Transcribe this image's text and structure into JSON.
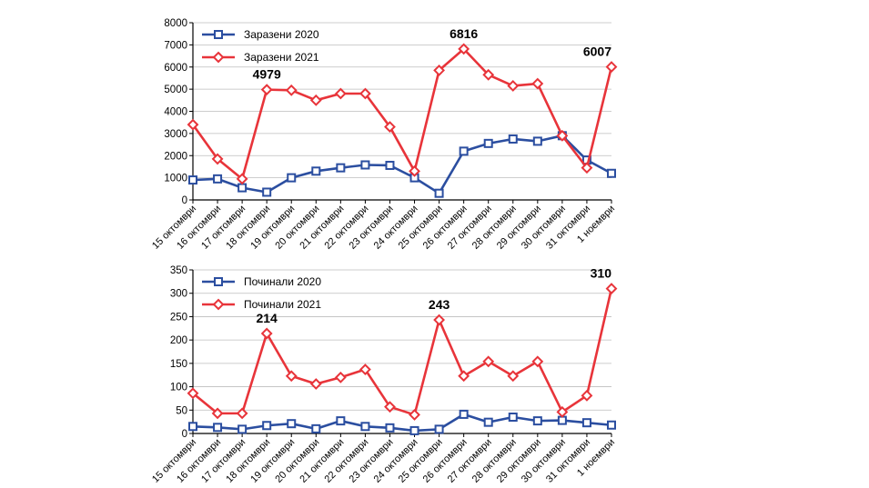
{
  "chart_data": [
    {
      "type": "line",
      "categories": [
        "15 октомври",
        "16 октомври",
        "17 октомври",
        "18 октомври",
        "19 октомври",
        "20 октомври",
        "21 октомври",
        "22 октомври",
        "23 октомври",
        "24 октомври",
        "25 октомври",
        "26 октомври",
        "27 октомври",
        "28 октомври",
        "29 октомври",
        "30 октомври",
        "31 октомври",
        "1 ноември"
      ],
      "series": [
        {
          "name": "Заразени 2020",
          "color": "#2b4ea0",
          "marker": "square",
          "values": [
            900,
            950,
            550,
            350,
            1000,
            1300,
            1450,
            1580,
            1560,
            1000,
            300,
            2200,
            2550,
            2750,
            2650,
            2900,
            1800,
            1200
          ]
        },
        {
          "name": "Заразени 2021",
          "color": "#e8343a",
          "marker": "diamond",
          "values": [
            3400,
            1850,
            950,
            4979,
            4950,
            4500,
            4800,
            4800,
            3300,
            1300,
            5850,
            6816,
            5650,
            5150,
            5250,
            2900,
            1450,
            6007
          ]
        }
      ],
      "annotations": [
        {
          "category": "18 октомври",
          "text": "4979"
        },
        {
          "category": "26 октомври",
          "text": "6816"
        },
        {
          "category": "1 ноември",
          "text": "6007"
        }
      ],
      "yticks": [
        "0",
        "1000",
        "2000",
        "3000",
        "4000",
        "5000",
        "6000",
        "7000",
        "8000"
      ],
      "ylim": [
        0,
        8000
      ],
      "grid": true,
      "legend": "top-left"
    },
    {
      "type": "line",
      "categories": [
        "15 октомври",
        "16 октомври",
        "17 октомври",
        "18 октомври",
        "19 октомври",
        "20 октомври",
        "21 октомври",
        "22 октомври",
        "23 октомври",
        "24 октомври",
        "25 октомври",
        "26 октомври",
        "27 октомври",
        "28 октомври",
        "29 октомври",
        "30 октомври",
        "31 октомври",
        "1 ноември"
      ],
      "series": [
        {
          "name": "Починали 2020",
          "color": "#2b4ea0",
          "marker": "square",
          "values": [
            15,
            13,
            9,
            17,
            21,
            10,
            27,
            15,
            12,
            6,
            9,
            41,
            24,
            35,
            27,
            28,
            23,
            18
          ]
        },
        {
          "name": "Починали 2021",
          "color": "#e8343a",
          "marker": "diamond",
          "values": [
            86,
            43,
            43,
            214,
            123,
            106,
            120,
            137,
            57,
            40,
            243,
            123,
            154,
            123,
            154,
            46,
            81,
            310
          ]
        }
      ],
      "annotations": [
        {
          "category": "18 октомври",
          "text": "214"
        },
        {
          "category": "25 октомври",
          "text": "243"
        },
        {
          "category": "1 ноември",
          "text": "310"
        }
      ],
      "yticks": [
        "0",
        "50",
        "100",
        "150",
        "200",
        "250",
        "300",
        "350"
      ],
      "ylim": [
        0,
        350
      ],
      "grid": true,
      "legend": "top-left"
    }
  ]
}
